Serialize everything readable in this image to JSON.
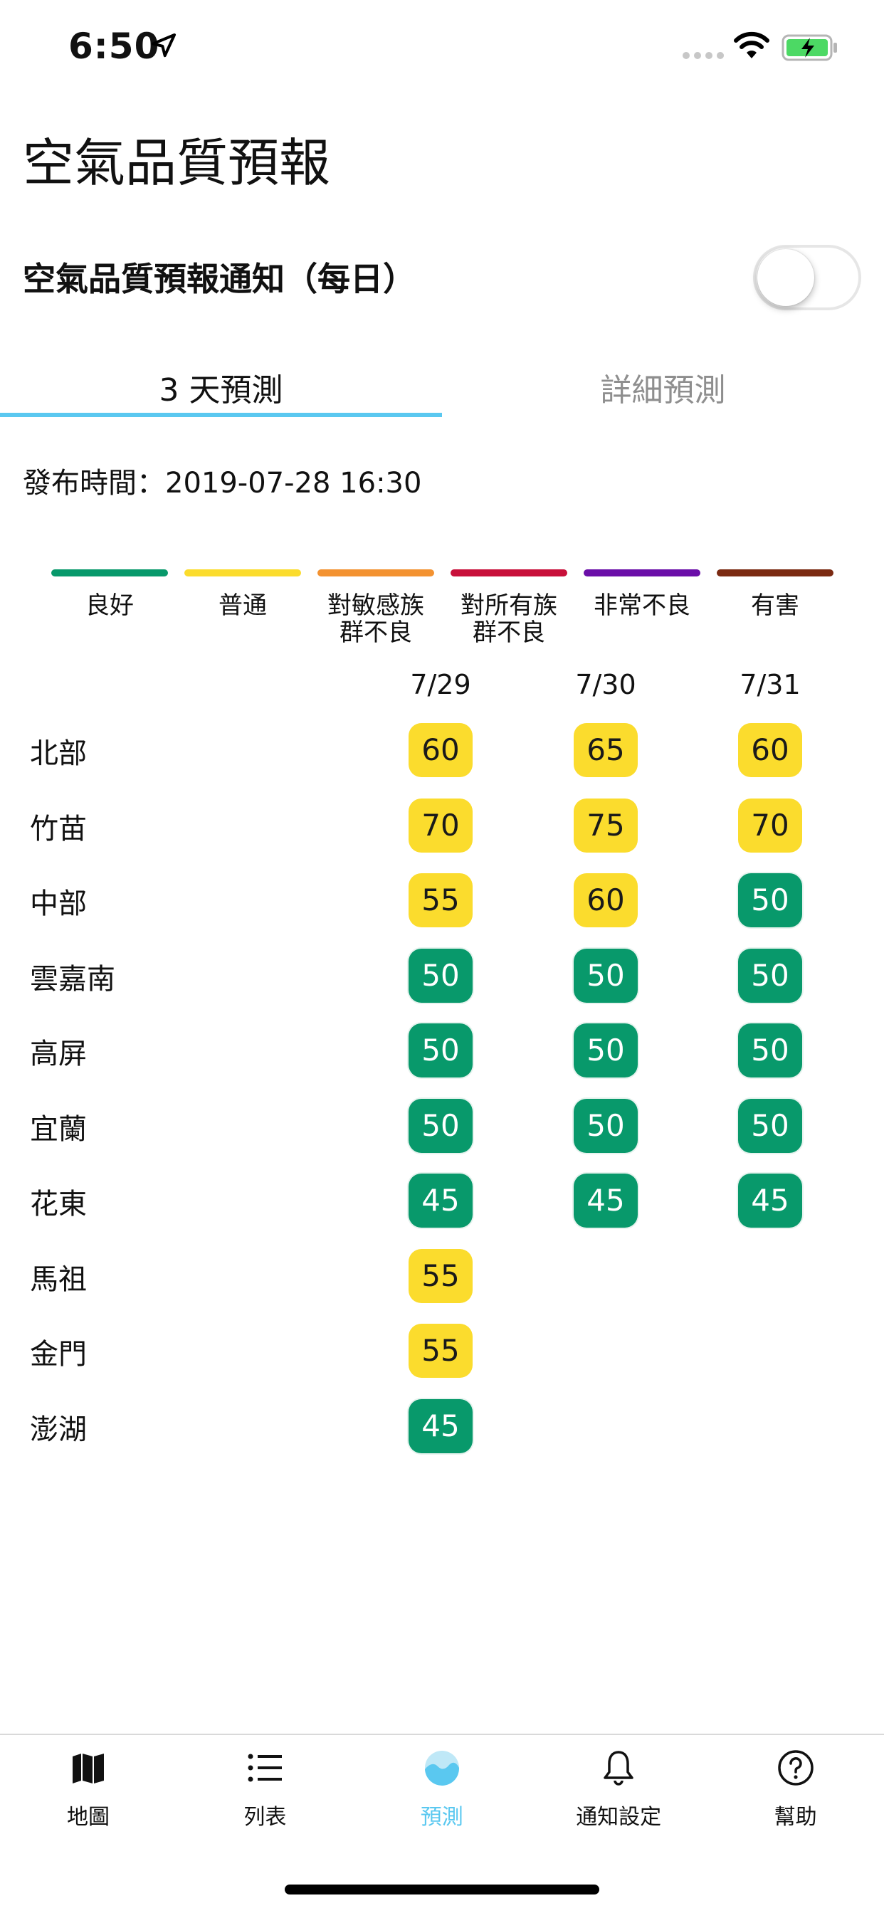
{
  "status_bar": {
    "time": "6:50"
  },
  "header": {
    "title": "空氣品質預報"
  },
  "notification": {
    "label": "空氣品質預報通知（每日）",
    "enabled": false
  },
  "tabs": [
    {
      "label": "3 天預測",
      "active": true
    },
    {
      "label": "詳細預測",
      "active": false
    }
  ],
  "publish_time": "發布時間：2019-07-28 16:30",
  "legend": [
    {
      "label_line1": "良好",
      "label_line2": "",
      "color": "#08996b"
    },
    {
      "label_line1": "普通",
      "label_line2": "",
      "color": "#fbdc2d"
    },
    {
      "label_line1": "對敏感族",
      "label_line2": "群不良",
      "color": "#f39231"
    },
    {
      "label_line1": "對所有族",
      "label_line2": "群不良",
      "color": "#c8103a"
    },
    {
      "label_line1": "非常不良",
      "label_line2": "",
      "color": "#6a0ea8"
    },
    {
      "label_line1": "有害",
      "label_line2": "",
      "color": "#7b2a12"
    }
  ],
  "forecast": {
    "dates": [
      "7/29",
      "7/30",
      "7/31"
    ],
    "rows": [
      {
        "region": "北部",
        "values": [
          "60",
          "65",
          "60"
        ],
        "levels": [
          "moderate",
          "moderate",
          "moderate"
        ]
      },
      {
        "region": "竹苗",
        "values": [
          "70",
          "75",
          "70"
        ],
        "levels": [
          "moderate",
          "moderate",
          "moderate"
        ]
      },
      {
        "region": "中部",
        "values": [
          "55",
          "60",
          "50"
        ],
        "levels": [
          "moderate",
          "moderate",
          "good"
        ]
      },
      {
        "region": "雲嘉南",
        "values": [
          "50",
          "50",
          "50"
        ],
        "levels": [
          "good",
          "good",
          "good"
        ]
      },
      {
        "region": "高屏",
        "values": [
          "50",
          "50",
          "50"
        ],
        "levels": [
          "good",
          "good",
          "good"
        ]
      },
      {
        "region": "宜蘭",
        "values": [
          "50",
          "50",
          "50"
        ],
        "levels": [
          "good",
          "good",
          "good"
        ]
      },
      {
        "region": "花東",
        "values": [
          "45",
          "45",
          "45"
        ],
        "levels": [
          "good",
          "good",
          "good"
        ]
      },
      {
        "region": "馬祖",
        "values": [
          "55"
        ],
        "levels": [
          "moderate"
        ]
      },
      {
        "region": "金門",
        "values": [
          "55"
        ],
        "levels": [
          "moderate"
        ]
      },
      {
        "region": "澎湖",
        "values": [
          "45"
        ],
        "levels": [
          "good"
        ]
      }
    ]
  },
  "colors": {
    "accent": "#5ac8f0",
    "good": "#08996b",
    "moderate": "#fbdc2d"
  },
  "tabbar": [
    {
      "label": "地圖",
      "icon": "map-icon",
      "active": false
    },
    {
      "label": "列表",
      "icon": "list-icon",
      "active": false
    },
    {
      "label": "預測",
      "icon": "forecast-icon",
      "active": true
    },
    {
      "label": "通知設定",
      "icon": "bell-icon",
      "active": false
    },
    {
      "label": "幫助",
      "icon": "help-icon",
      "active": false
    }
  ]
}
